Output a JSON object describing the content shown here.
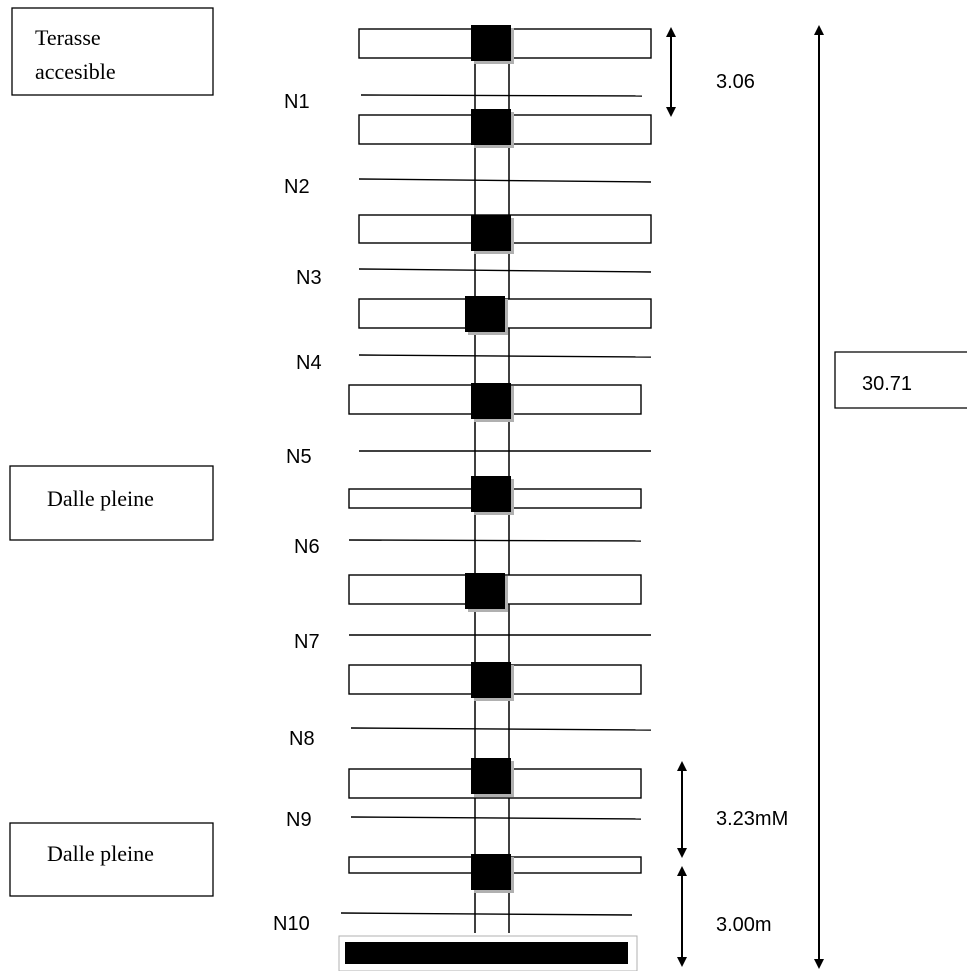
{
  "labels": {
    "top_box": [
      "Terasse",
      "accesible"
    ],
    "middle_box": "Dalle pleine",
    "bottom_box": "Dalle pleine",
    "total_height": "30.71",
    "dim_top": "3.06",
    "dim_middle": "3.23mM",
    "dim_bottom": "3.00m"
  },
  "levels": [
    "N1",
    "N2",
    "N3",
    "N4",
    "N5",
    "N6",
    "N7",
    "N8",
    "N9",
    "N10"
  ],
  "colors": {
    "stroke": "#000000",
    "fill": "#000000",
    "background": "#ffffff",
    "shadow": "#b0b0b0"
  }
}
